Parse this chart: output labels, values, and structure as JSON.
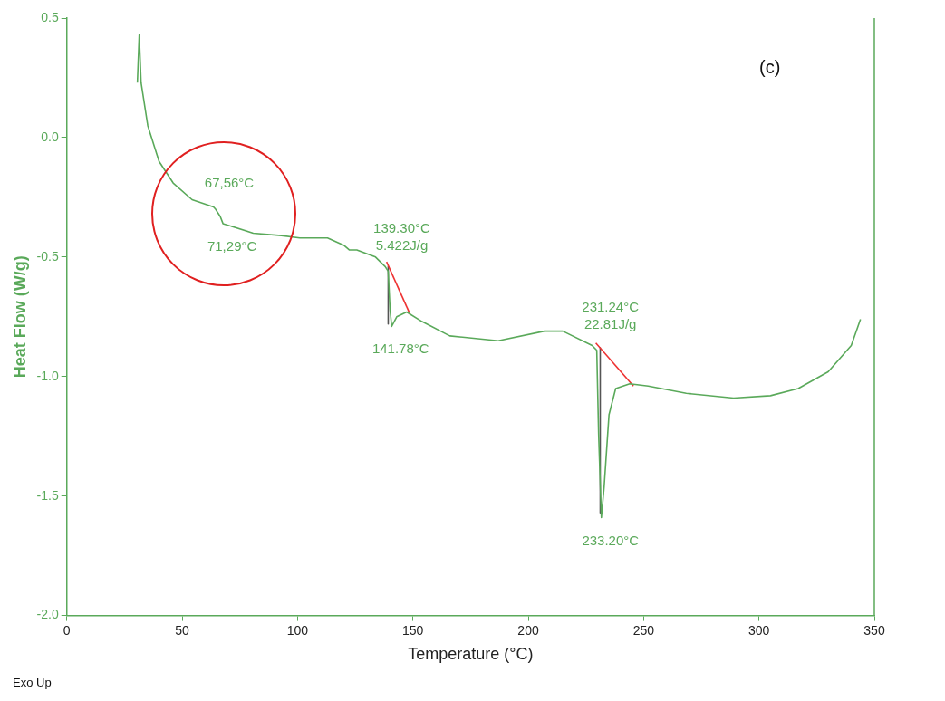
{
  "chart_data": {
    "type": "line",
    "xlabel": "Temperature (°C)",
    "ylabel": "Heat Flow (W/g)",
    "xlim": [
      0,
      350
    ],
    "xticks": [
      0,
      50,
      100,
      150,
      200,
      250,
      300,
      350
    ],
    "ylim": [
      -2.0,
      0.5
    ],
    "yticks": [
      {
        "value": -2.0,
        "label": "-2.0"
      },
      {
        "value": -1.5,
        "label": "-1.5"
      },
      {
        "value": -1.0,
        "label": "-1.0"
      },
      {
        "value": -0.5,
        "label": "-0.5"
      },
      {
        "value": 0.0,
        "label": "0.0"
      },
      {
        "value": 0.5,
        "label": "0.5"
      }
    ],
    "grid": false,
    "legend": false,
    "marker": "none",
    "line_style": "solid",
    "series": [
      {
        "color": "#5aa95a",
        "x": [
          30.6,
          31.4,
          32.2,
          35.1,
          40,
          46.1,
          54.3,
          63.6,
          64.5,
          66.5,
          67.7,
          80.8,
          93,
          101,
          113,
          120,
          122.4,
          125.7,
          133.8,
          138,
          139.3,
          140.1,
          140.8,
          143,
          147.3,
          154,
          166,
          187,
          207,
          215,
          227.7,
          229.7,
          230.5,
          231.7,
          232.9,
          235,
          237.9,
          244,
          252,
          268.5,
          289,
          305,
          317,
          330,
          340,
          344
        ],
        "values": [
          0.23,
          0.43,
          0.23,
          0.05,
          -0.1,
          -0.19,
          -0.26,
          -0.29,
          -0.3,
          -0.33,
          -0.36,
          -0.4,
          -0.41,
          -0.42,
          -0.42,
          -0.45,
          -0.47,
          -0.47,
          -0.5,
          -0.54,
          -0.56,
          -0.72,
          -0.79,
          -0.75,
          -0.73,
          -0.77,
          -0.83,
          -0.85,
          -0.81,
          -0.81,
          -0.87,
          -0.89,
          -1.24,
          -1.59,
          -1.46,
          -1.16,
          -1.05,
          -1.03,
          -1.04,
          -1.07,
          -1.09,
          -1.08,
          -1.05,
          -0.98,
          -0.87,
          -0.76
        ]
      },
      {
        "color": "#ee3333",
        "x": [
          138.6,
          148.8
        ],
        "values": [
          -0.52,
          -0.74
        ]
      },
      {
        "color": "#ee3333",
        "x": [
          229.3,
          245.6
        ],
        "values": [
          -0.86,
          -1.04
        ]
      },
      {
        "color": "#555555",
        "x": [
          139.3,
          139.3
        ],
        "values": [
          -0.54,
          -0.78
        ]
      },
      {
        "color": "#555555",
        "x": [
          231.2,
          231.2
        ],
        "values": [
          -0.88,
          -1.57
        ]
      }
    ],
    "annotations": [
      "(c)",
      "Exo Up",
      {
        "text": "67,56°C",
        "x": 64.5,
        "y": -0.3
      },
      {
        "text": "71,29°C",
        "x": 67.7,
        "y": -0.36
      },
      {
        "text": "139.30°C\n5.422J/g",
        "x": 139.3,
        "y": -0.56
      },
      {
        "text": "141.78°C",
        "x": 140.8,
        "y": -0.79
      },
      {
        "text": "231.24°C\n22.81J/g",
        "x": 229.7,
        "y": -0.89
      },
      {
        "text": "233.20°C",
        "x": 231.7,
        "y": -1.59
      }
    ]
  }
}
